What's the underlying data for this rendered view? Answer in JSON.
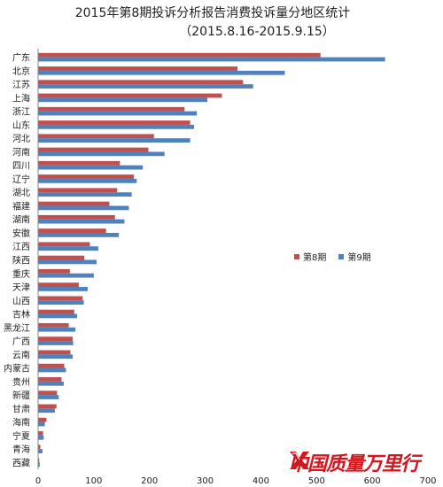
{
  "chart_data": {
    "type": "bar",
    "orientation": "horizontal",
    "title": "2015年第8期投诉分析报告消费投诉量分地区统计",
    "subtitle": "（2015.8.16-2015.9.15）",
    "categories": [
      "广东",
      "北京",
      "江苏",
      "上海",
      "浙江",
      "山东",
      "河北",
      "河南",
      "四川",
      "辽宁",
      "湖北",
      "福建",
      "湖南",
      "安徽",
      "江西",
      "陕西",
      "重庆",
      "天津",
      "山西",
      "吉林",
      "黑龙江",
      "广西",
      "云南",
      "内蒙古",
      "贵州",
      "新疆",
      "甘肃",
      "海南",
      "宁夏",
      "青海",
      "西藏"
    ],
    "series": [
      {
        "name": "第8期",
        "color": "#c0504d",
        "values": [
          507,
          358,
          368,
          330,
          263,
          273,
          208,
          198,
          147,
          172,
          142,
          128,
          138,
          122,
          93,
          83,
          57,
          73,
          80,
          65,
          55,
          62,
          58,
          47,
          42,
          34,
          33,
          15,
          9,
          4,
          2
        ]
      },
      {
        "name": "第9期",
        "color": "#4f81bd",
        "values": [
          623,
          443,
          386,
          304,
          285,
          280,
          273,
          227,
          188,
          177,
          168,
          163,
          155,
          145,
          108,
          105,
          100,
          89,
          82,
          70,
          67,
          63,
          62,
          50,
          46,
          37,
          30,
          12,
          10,
          8,
          3
        ]
      }
    ],
    "xticks": [
      0,
      100,
      200,
      300,
      400,
      500,
      600,
      700
    ],
    "xlim": [
      0,
      700
    ],
    "legend": "right-middle",
    "grid": false
  },
  "branding": {
    "logo_text": "中国质量万里行"
  }
}
